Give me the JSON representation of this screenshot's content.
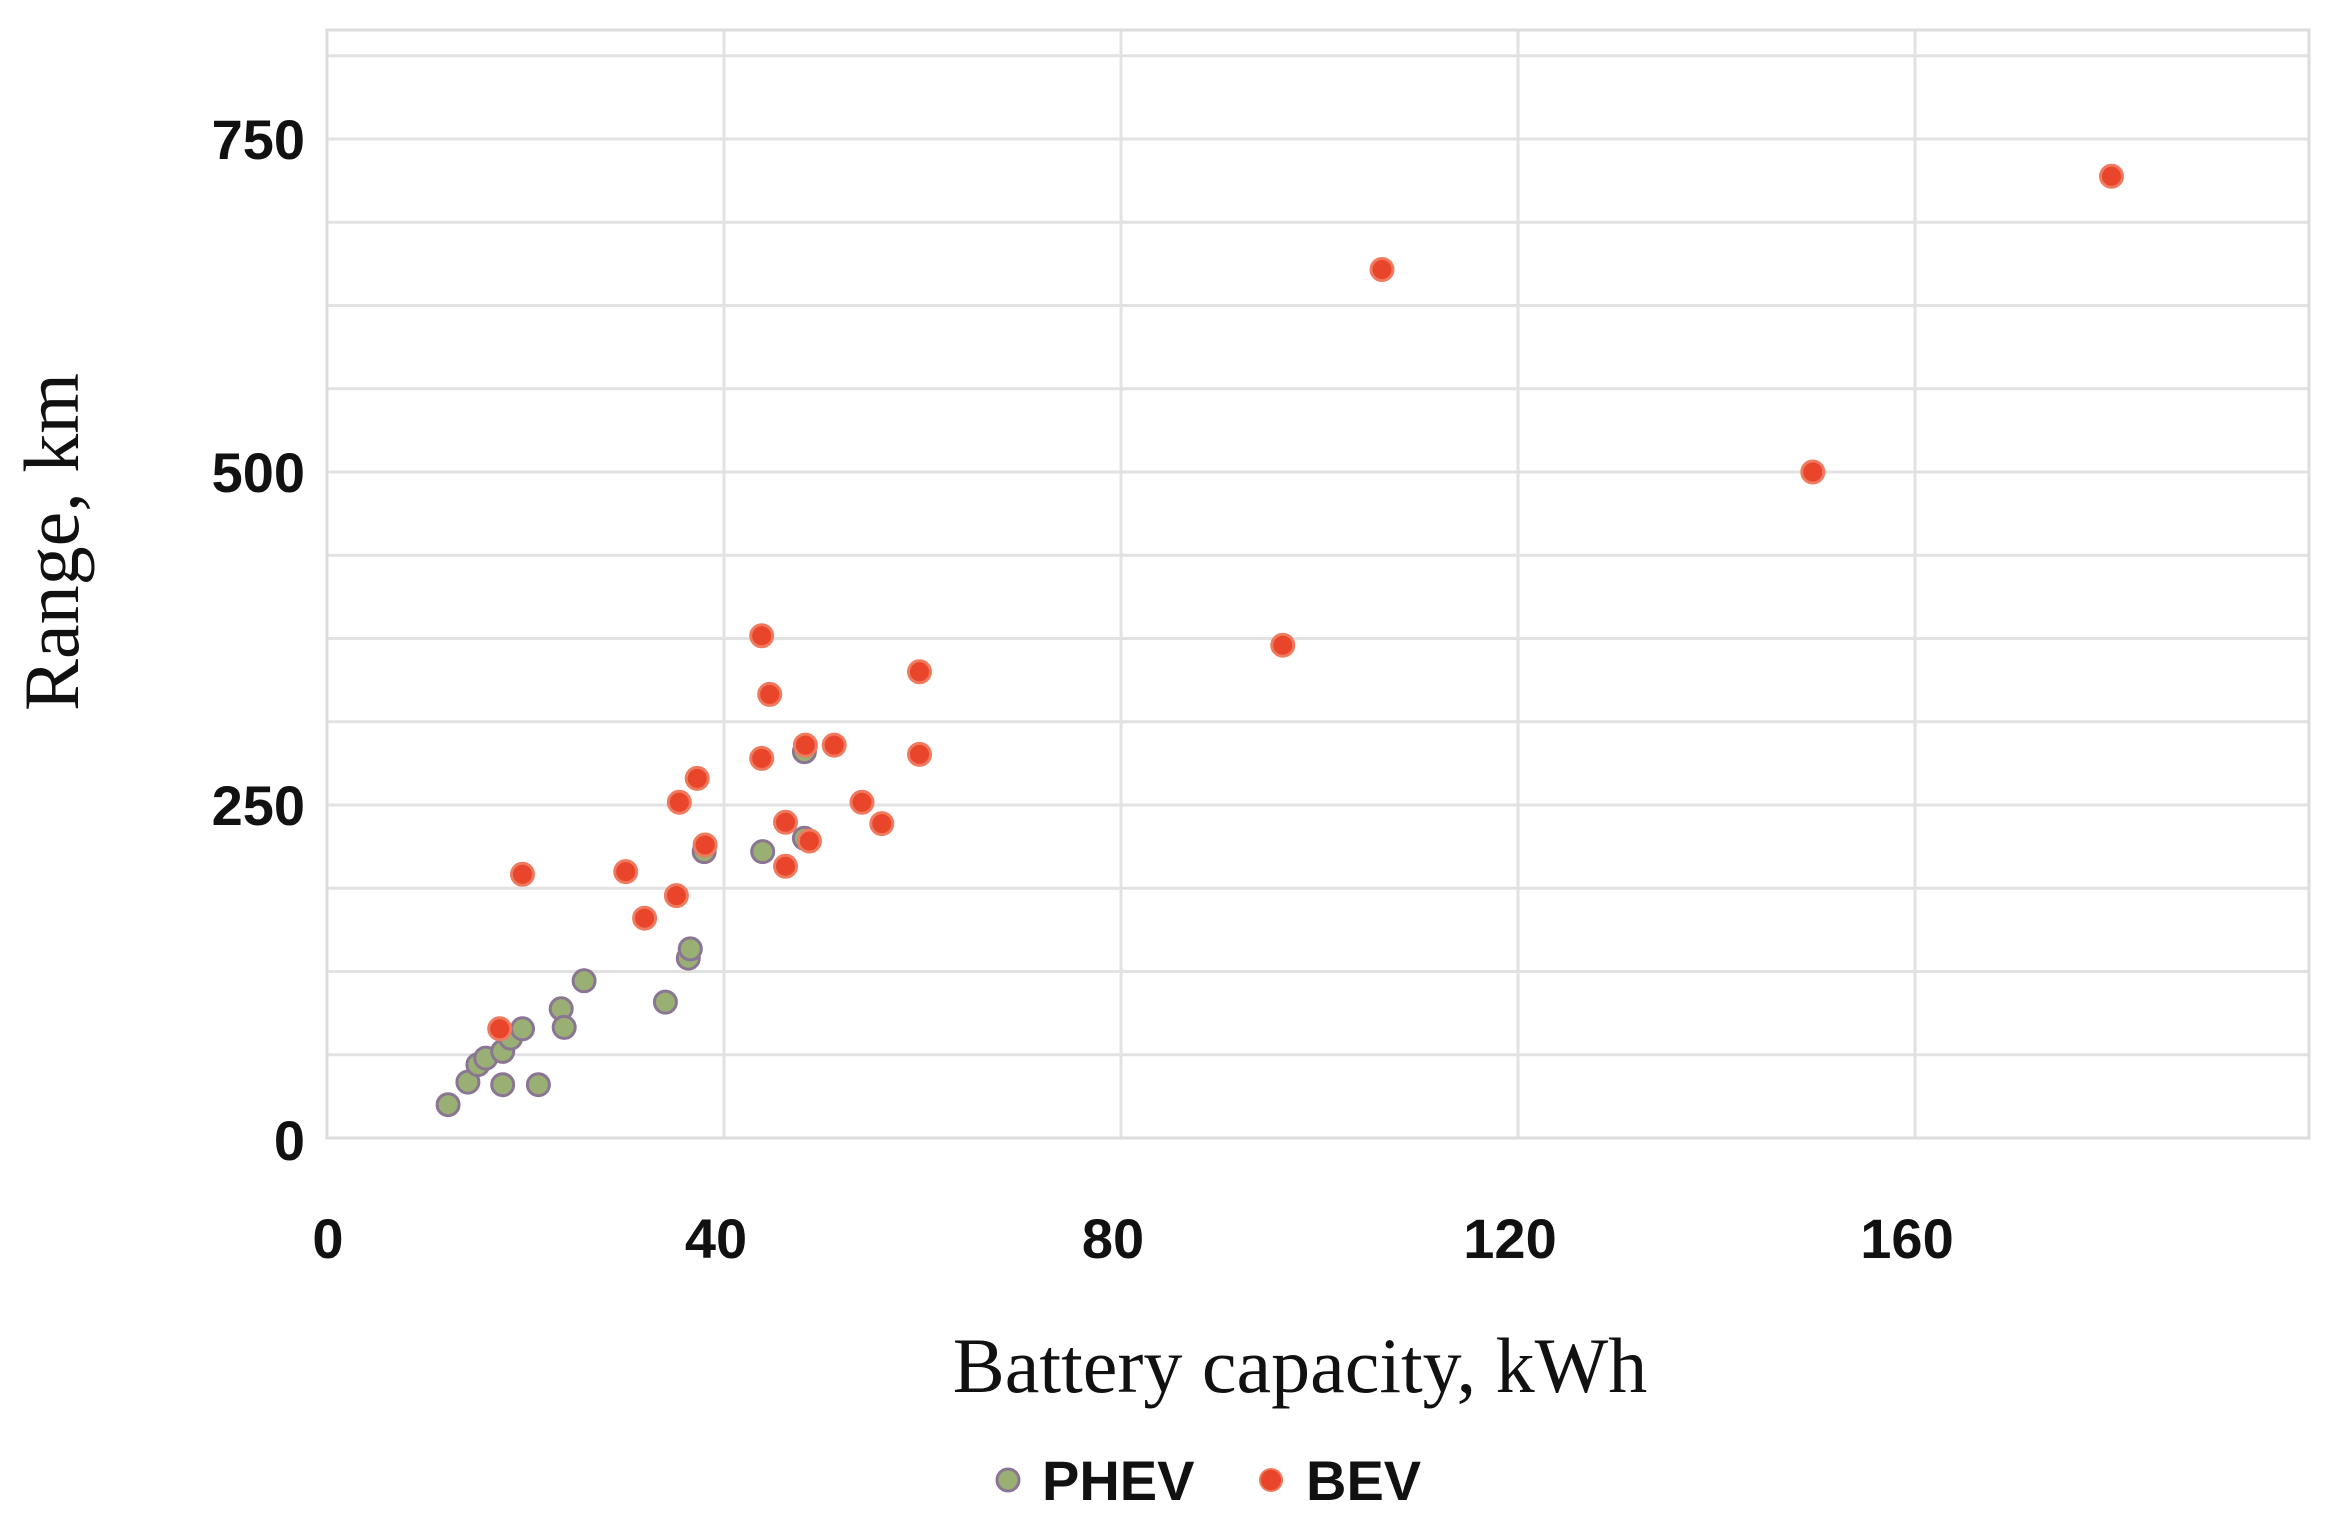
{
  "chart_data": {
    "type": "scatter",
    "title": "",
    "xlabel": "Battery capacity, kWh",
    "ylabel": "Range, km",
    "xlim": [
      0,
      200
    ],
    "ylim": [
      0,
      830
    ],
    "xticks": [
      0,
      40,
      80,
      120,
      160
    ],
    "yticks": [
      0,
      250,
      500,
      750
    ],
    "grid": true,
    "legend_position": "bottom-center",
    "series": [
      {
        "name": "PHEV",
        "color": "#9aaf74",
        "edge_color": "#8a7593",
        "points": [
          [
            12.2,
            25
          ],
          [
            14.2,
            42
          ],
          [
            15.2,
            55
          ],
          [
            16.0,
            60
          ],
          [
            17.7,
            65
          ],
          [
            17.7,
            40
          ],
          [
            18.5,
            75
          ],
          [
            19.7,
            82
          ],
          [
            21.3,
            40
          ],
          [
            23.6,
            97
          ],
          [
            23.9,
            83
          ],
          [
            25.9,
            118
          ],
          [
            34.1,
            102
          ],
          [
            36.4,
            135
          ],
          [
            36.6,
            142
          ],
          [
            38.0,
            215
          ],
          [
            43.9,
            215
          ],
          [
            48.1,
            290
          ],
          [
            48.1,
            225
          ]
        ]
      },
      {
        "name": "BEV",
        "color": "#e8452a",
        "edge_color": "#ef7a5f",
        "points": [
          [
            19.7,
            198
          ],
          [
            17.4,
            82
          ],
          [
            30.1,
            200
          ],
          [
            32.0,
            165
          ],
          [
            35.2,
            182
          ],
          [
            35.5,
            252
          ],
          [
            37.3,
            270
          ],
          [
            38.1,
            220
          ],
          [
            43.8,
            377
          ],
          [
            43.8,
            285
          ],
          [
            44.6,
            333
          ],
          [
            46.2,
            237
          ],
          [
            46.2,
            204
          ],
          [
            48.2,
            295
          ],
          [
            48.6,
            223
          ],
          [
            51.1,
            295
          ],
          [
            53.9,
            252
          ],
          [
            55.9,
            236
          ],
          [
            59.7,
            350
          ],
          [
            59.7,
            288
          ],
          [
            96.3,
            370
          ],
          [
            106.3,
            652
          ],
          [
            149.7,
            500
          ],
          [
            179.8,
            722
          ]
        ]
      }
    ]
  }
}
